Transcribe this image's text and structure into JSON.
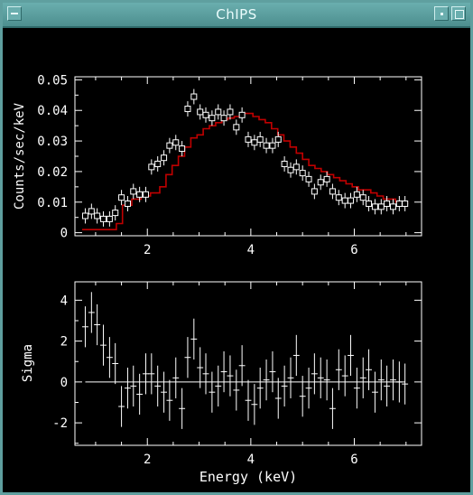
{
  "window": {
    "title": "ChIPS"
  },
  "chart_data": [
    {
      "type": "scatter",
      "title": "",
      "xlabel": "",
      "ylabel": "Counts/sec/keV",
      "xlim": [
        0.6,
        7.3
      ],
      "ylim": [
        -0.001,
        0.051
      ],
      "xticks": [
        2,
        4,
        6
      ],
      "yticks": [
        0,
        0.01,
        0.02,
        0.03,
        0.04,
        0.05
      ],
      "ytick_labels": [
        "0",
        "0.01",
        "0.02",
        "0.03",
        "0.04",
        "0.05"
      ],
      "series": [
        {
          "kind": "data-with-errorbars",
          "color": "#ffffff",
          "x": [
            0.8,
            0.92,
            1.03,
            1.15,
            1.27,
            1.38,
            1.5,
            1.62,
            1.73,
            1.85,
            1.97,
            2.08,
            2.2,
            2.32,
            2.43,
            2.55,
            2.67,
            2.78,
            2.9,
            3.02,
            3.13,
            3.25,
            3.37,
            3.48,
            3.6,
            3.72,
            3.83,
            3.95,
            4.07,
            4.18,
            4.3,
            4.42,
            4.53,
            4.65,
            4.77,
            4.88,
            5.0,
            5.12,
            5.23,
            5.35,
            5.47,
            5.58,
            5.7,
            5.82,
            5.93,
            6.05,
            6.17,
            6.28,
            6.4,
            6.52,
            6.63,
            6.75,
            6.87,
            6.98
          ],
          "y": [
            0.0055,
            0.007,
            0.0055,
            0.0045,
            0.0045,
            0.0065,
            0.0115,
            0.0095,
            0.0135,
            0.0125,
            0.0125,
            0.0215,
            0.0225,
            0.0245,
            0.0285,
            0.0295,
            0.0275,
            0.0405,
            0.0445,
            0.0395,
            0.0385,
            0.0375,
            0.0395,
            0.0375,
            0.0395,
            0.0345,
            0.0385,
            0.0305,
            0.0295,
            0.0305,
            0.0285,
            0.0285,
            0.0305,
            0.0225,
            0.0205,
            0.0215,
            0.0195,
            0.0175,
            0.0135,
            0.0165,
            0.0175,
            0.0135,
            0.0115,
            0.0105,
            0.0105,
            0.0125,
            0.0115,
            0.0095,
            0.0085,
            0.0085,
            0.0095,
            0.0085,
            0.0095,
            0.0095
          ],
          "yerr": 0.0025,
          "xerr": 0.06
        },
        {
          "kind": "model-step",
          "color": "#c00000",
          "x_edges": [
            0.74,
            0.98,
            1.22,
            1.4,
            1.52,
            1.7,
            1.88,
            2.06,
            2.24,
            2.36,
            2.48,
            2.6,
            2.72,
            2.84,
            2.96,
            3.08,
            3.2,
            3.32,
            3.44,
            3.56,
            3.68,
            3.8,
            3.92,
            4.04,
            4.16,
            4.28,
            4.4,
            4.52,
            4.64,
            4.76,
            4.88,
            5.0,
            5.12,
            5.24,
            5.36,
            5.48,
            5.6,
            5.72,
            5.84,
            5.96,
            6.08,
            6.2,
            6.32,
            6.44,
            6.56,
            6.68,
            6.8,
            6.92,
            7.04
          ],
          "y": [
            0.001,
            0.001,
            0.001,
            0.003,
            0.009,
            0.011,
            0.012,
            0.013,
            0.015,
            0.019,
            0.022,
            0.025,
            0.028,
            0.031,
            0.032,
            0.034,
            0.035,
            0.036,
            0.037,
            0.0375,
            0.038,
            0.039,
            0.039,
            0.038,
            0.037,
            0.036,
            0.034,
            0.032,
            0.03,
            0.028,
            0.026,
            0.024,
            0.022,
            0.021,
            0.02,
            0.019,
            0.018,
            0.017,
            0.016,
            0.015,
            0.014,
            0.014,
            0.013,
            0.012,
            0.011,
            0.011,
            0.01,
            0.01
          ]
        }
      ]
    },
    {
      "type": "scatter",
      "title": "",
      "xlabel": "Energy (keV)",
      "ylabel": "Sigma",
      "xlim": [
        0.6,
        7.3
      ],
      "ylim": [
        -3.1,
        4.9
      ],
      "xticks": [
        2,
        4,
        6
      ],
      "yticks": [
        -2,
        0,
        2,
        4
      ],
      "series": [
        {
          "kind": "residuals-with-errorbars",
          "color": "#ffffff",
          "x": [
            0.8,
            0.92,
            1.03,
            1.15,
            1.27,
            1.38,
            1.5,
            1.62,
            1.73,
            1.85,
            1.97,
            2.08,
            2.2,
            2.32,
            2.43,
            2.55,
            2.67,
            2.78,
            2.9,
            3.02,
            3.13,
            3.25,
            3.37,
            3.48,
            3.6,
            3.72,
            3.83,
            3.95,
            4.07,
            4.18,
            4.3,
            4.42,
            4.53,
            4.65,
            4.77,
            4.88,
            5.0,
            5.12,
            5.23,
            5.35,
            5.47,
            5.58,
            5.7,
            5.82,
            5.93,
            6.05,
            6.17,
            6.28,
            6.4,
            6.52,
            6.63,
            6.75,
            6.87,
            6.98
          ],
          "y": [
            2.7,
            3.4,
            2.8,
            1.8,
            1.2,
            0.9,
            -1.2,
            -0.3,
            -0.2,
            -0.6,
            0.4,
            0.4,
            -0.2,
            -0.5,
            -0.9,
            0.2,
            -1.3,
            1.2,
            2.1,
            0.7,
            0.4,
            -0.5,
            -0.2,
            0.5,
            0.3,
            -0.4,
            0.8,
            -0.9,
            -1.1,
            -0.3,
            0.1,
            0.5,
            -0.8,
            -0.2,
            0.2,
            1.3,
            -0.7,
            -0.3,
            0.4,
            0.2,
            0.1,
            -1.3,
            0.6,
            0.3,
            1.3,
            -0.3,
            0.2,
            0.6,
            -0.5,
            0.1,
            -0.2,
            0.1,
            0.0,
            -0.1
          ],
          "yerr": 1.0,
          "xerr": 0.06
        }
      ],
      "hline": 0
    }
  ]
}
